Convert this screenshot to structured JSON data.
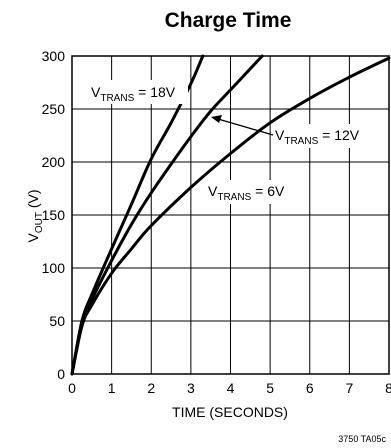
{
  "chart_data": {
    "type": "line",
    "title": "Charge Time",
    "xlabel": "TIME (SECONDS)",
    "ylabel": {
      "main": "V",
      "sub": "OUT",
      "tail": " (V)"
    },
    "xlim": [
      0,
      8
    ],
    "ylim": [
      0,
      300
    ],
    "xticks": [
      0,
      1,
      2,
      3,
      4,
      5,
      6,
      7,
      8
    ],
    "yticks": [
      0,
      50,
      100,
      150,
      200,
      250,
      300
    ],
    "grid": true,
    "legend": "none",
    "series": [
      {
        "name": {
          "main": "V",
          "sub": "TRANS",
          "tail": " = 18V"
        },
        "x": [
          0,
          0.25,
          0.5,
          1.0,
          1.5,
          2.0,
          2.5,
          3.0,
          3.3
        ],
        "y": [
          0,
          50,
          75,
          118,
          160,
          203,
          237,
          274,
          300
        ]
      },
      {
        "name": {
          "main": "V",
          "sub": "TRANS",
          "tail": " = 12V"
        },
        "x": [
          0,
          0.25,
          0.5,
          1.0,
          1.5,
          2.0,
          2.5,
          3.0,
          3.5,
          4.0,
          4.5,
          4.8
        ],
        "y": [
          0,
          48,
          70,
          107,
          141,
          171,
          198,
          224,
          248,
          268,
          288,
          300
        ]
      },
      {
        "name": {
          "main": "V",
          "sub": "TRANS",
          "tail": " = 6V"
        },
        "x": [
          0,
          0.25,
          0.5,
          1.0,
          1.5,
          2.0,
          3.0,
          4.0,
          5.0,
          6.0,
          7.0,
          8.0
        ],
        "y": [
          0,
          45,
          65,
          95,
          118,
          140,
          176,
          208,
          237,
          260,
          280,
          298
        ]
      }
    ],
    "figure_id": "3750 TA05c"
  }
}
